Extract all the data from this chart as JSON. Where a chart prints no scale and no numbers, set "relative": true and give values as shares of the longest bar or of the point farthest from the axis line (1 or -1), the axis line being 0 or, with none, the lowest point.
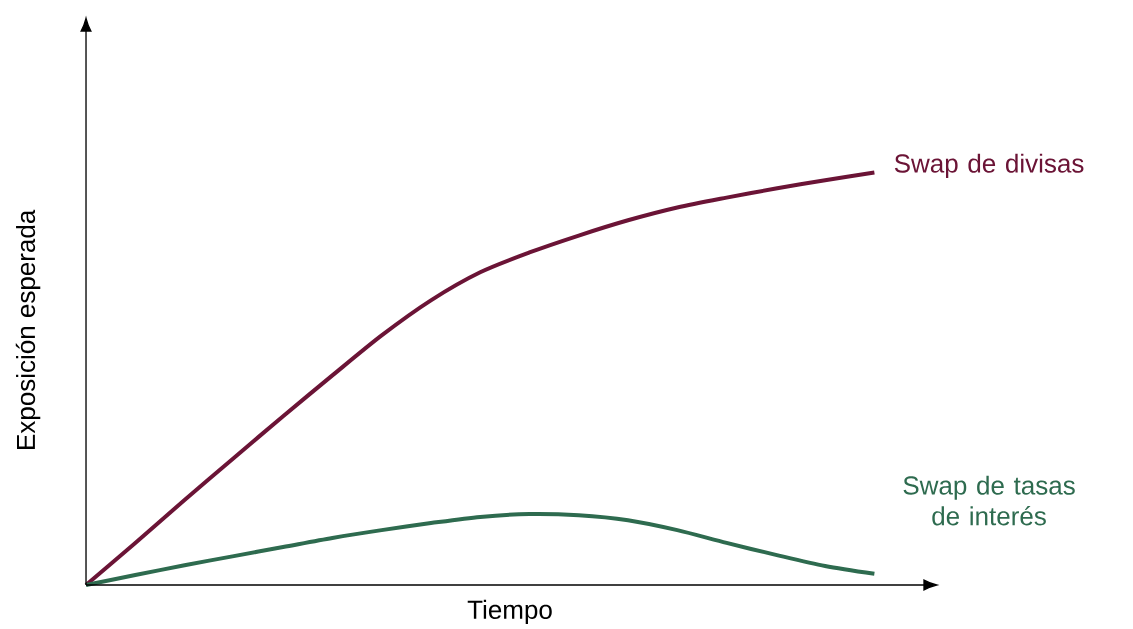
{
  "chart_data": {
    "type": "line",
    "relative": true,
    "xlabel": "Tiempo",
    "ylabel": "Exposición esperada",
    "categories": [
      null,
      null,
      null,
      null,
      null,
      null,
      null,
      null,
      null,
      null,
      null,
      null,
      null,
      null,
      null,
      null,
      null
    ],
    "series": [
      {
        "name": "Swap de divisas",
        "color": "#6b1436",
        "values": [
          0,
          0.102,
          0.206,
          0.308,
          0.409,
          0.508,
          0.605,
          0.69,
          0.758,
          0.806,
          0.847,
          0.884,
          0.915,
          0.939,
          0.961,
          0.981,
          1
        ]
      },
      {
        "name": "Swap de tasas de interés",
        "color": "#2e6b4f",
        "values": [
          0,
          0.024,
          0.048,
          0.07,
          0.092,
          0.114,
          0.133,
          0.15,
          0.165,
          0.172,
          0.169,
          0.157,
          0.133,
          0.102,
          0.073,
          0.046,
          0.027
        ]
      }
    ]
  }
}
